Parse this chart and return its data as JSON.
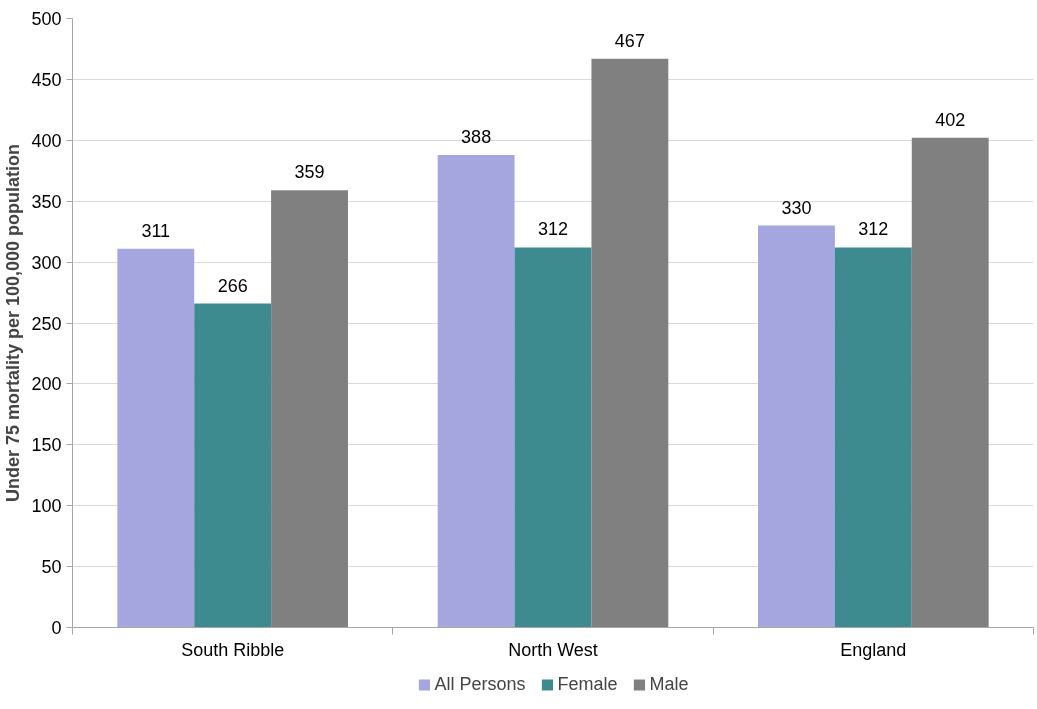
{
  "chart_data": {
    "type": "bar",
    "ylabel": "Under 75 mortality per 100,000 population",
    "categories": [
      "South Ribble",
      "North West",
      "England"
    ],
    "series": [
      {
        "name": "All Persons",
        "color": "#a5a5df",
        "values": [
          311,
          388,
          330
        ]
      },
      {
        "name": "Female",
        "color": "#3d8b8f",
        "values": [
          266,
          312,
          312
        ]
      },
      {
        "name": "Male",
        "color": "#808080",
        "values": [
          359,
          467,
          402
        ]
      }
    ],
    "ylim": [
      0,
      500
    ],
    "yticks": [
      0,
      50,
      100,
      150,
      200,
      250,
      300,
      350,
      400,
      450,
      500
    ],
    "grid": "y",
    "legend": "bottom",
    "data_labels": true
  }
}
